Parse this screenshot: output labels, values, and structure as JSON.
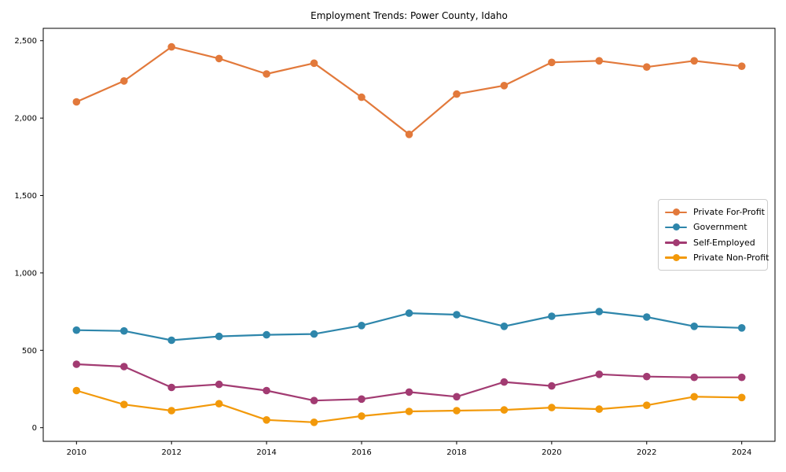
{
  "chart_data": {
    "type": "line",
    "title": "Employment Trends: Power County, Idaho",
    "xlabel": "",
    "ylabel": "",
    "grid": false,
    "legend_position": "center right",
    "x": [
      2010,
      2011,
      2012,
      2013,
      2014,
      2015,
      2016,
      2017,
      2018,
      2019,
      2020,
      2021,
      2022,
      2023,
      2024
    ],
    "series": [
      {
        "name": "Private For-Profit",
        "color": "#E2793B",
        "values": [
          2105,
          2240,
          2460,
          2385,
          2285,
          2355,
          2135,
          1895,
          2155,
          2210,
          2360,
          2370,
          2330,
          2370,
          2335
        ]
      },
      {
        "name": "Government",
        "color": "#2E86AB",
        "values": [
          630,
          625,
          565,
          590,
          600,
          605,
          660,
          740,
          730,
          655,
          720,
          750,
          715,
          655,
          645
        ]
      },
      {
        "name": "Self-Employed",
        "color": "#A23B72",
        "values": [
          410,
          395,
          260,
          280,
          240,
          175,
          185,
          230,
          200,
          295,
          270,
          345,
          330,
          325,
          325
        ]
      },
      {
        "name": "Private Non-Profit",
        "color": "#F2990A",
        "values": [
          240,
          150,
          110,
          155,
          50,
          35,
          75,
          105,
          110,
          115,
          130,
          120,
          145,
          200,
          195
        ]
      }
    ],
    "xlim": [
      2009.3,
      2024.7
    ],
    "ylim": [
      -88,
      2580
    ],
    "x_ticks": [
      2010,
      2012,
      2014,
      2016,
      2018,
      2020,
      2022,
      2024
    ],
    "x_tick_labels": [
      "2010",
      "2012",
      "2014",
      "2016",
      "2018",
      "2020",
      "2022",
      "2024"
    ],
    "y_ticks": [
      0,
      500,
      1000,
      1500,
      2000,
      2500
    ],
    "y_tick_labels": [
      "0",
      "500",
      "1,000",
      "1,500",
      "2,000",
      "2,500"
    ],
    "axis_color": "#000000",
    "background_color": "#ffffff"
  }
}
